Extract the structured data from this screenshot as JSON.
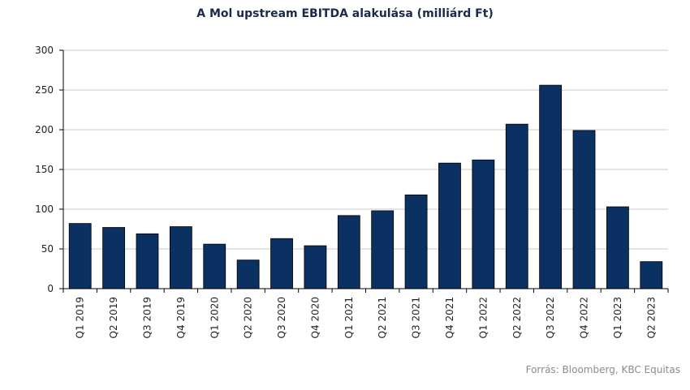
{
  "chart_data": {
    "type": "bar",
    "title": "A Mol upstream EBITDA alakulása (milliárd Ft)",
    "categories": [
      "Q1 2019",
      "Q2 2019",
      "Q3 2019",
      "Q4 2019",
      "Q1 2020",
      "Q2 2020",
      "Q3 2020",
      "Q4 2020",
      "Q1 2021",
      "Q2 2021",
      "Q3 2021",
      "Q4 2021",
      "Q1 2022",
      "Q2 2022",
      "Q3 2022",
      "Q4 2022",
      "Q1 2023",
      "Q2 2023"
    ],
    "values": [
      82,
      77,
      69,
      78,
      56,
      36,
      63,
      54,
      92,
      98,
      118,
      158,
      162,
      207,
      256,
      199,
      103,
      34
    ],
    "ylim": [
      0,
      300
    ],
    "yticks": [
      0,
      50,
      100,
      150,
      200,
      250,
      300
    ],
    "xlabel": "",
    "ylabel": "",
    "grid": true,
    "bar_color": "#0a3161",
    "grid_color": "#c8c8c8"
  },
  "source": "Forrás: Bloomberg,  KBC Equitas"
}
